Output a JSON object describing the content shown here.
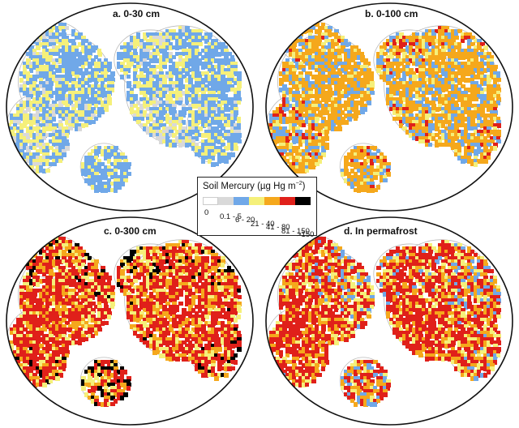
{
  "panels": [
    {
      "title": "a. 0-30 cm",
      "palette": [
        "#70a8e8",
        "#f5f07a",
        "#f5f07a",
        "#d9d9d9"
      ]
    },
    {
      "title": "b. 0-100 cm",
      "palette": [
        "#f5a81c",
        "#70a8e8",
        "#f5f07a",
        "#e0201a"
      ]
    },
    {
      "title": "c. 0-300 cm",
      "palette": [
        "#e0201a",
        "#f5a81c",
        "#f5f07a",
        "#000000"
      ]
    },
    {
      "title": "d. In permafrost",
      "palette": [
        "#e0201a",
        "#f5a81c",
        "#f5f07a",
        "#70a8e8"
      ]
    }
  ],
  "legend": {
    "title": "Soil Mercury (µg Hg m",
    "title_sup": "−2",
    "title_end": ")",
    "classes": [
      {
        "label": "0",
        "color": "#ffffff"
      },
      {
        "label": "0.1 - 5",
        "color": "#d9d9d9"
      },
      {
        "label": "6 - 20",
        "color": "#70a8e8"
      },
      {
        "label": "21 - 40",
        "color": "#f5f07a"
      },
      {
        "label": "41 - 80",
        "color": "#f5a81c"
      },
      {
        "label": "81 - 150",
        "color": "#e0201a"
      },
      {
        "label": ">150",
        "color": "#000000"
      }
    ]
  }
}
